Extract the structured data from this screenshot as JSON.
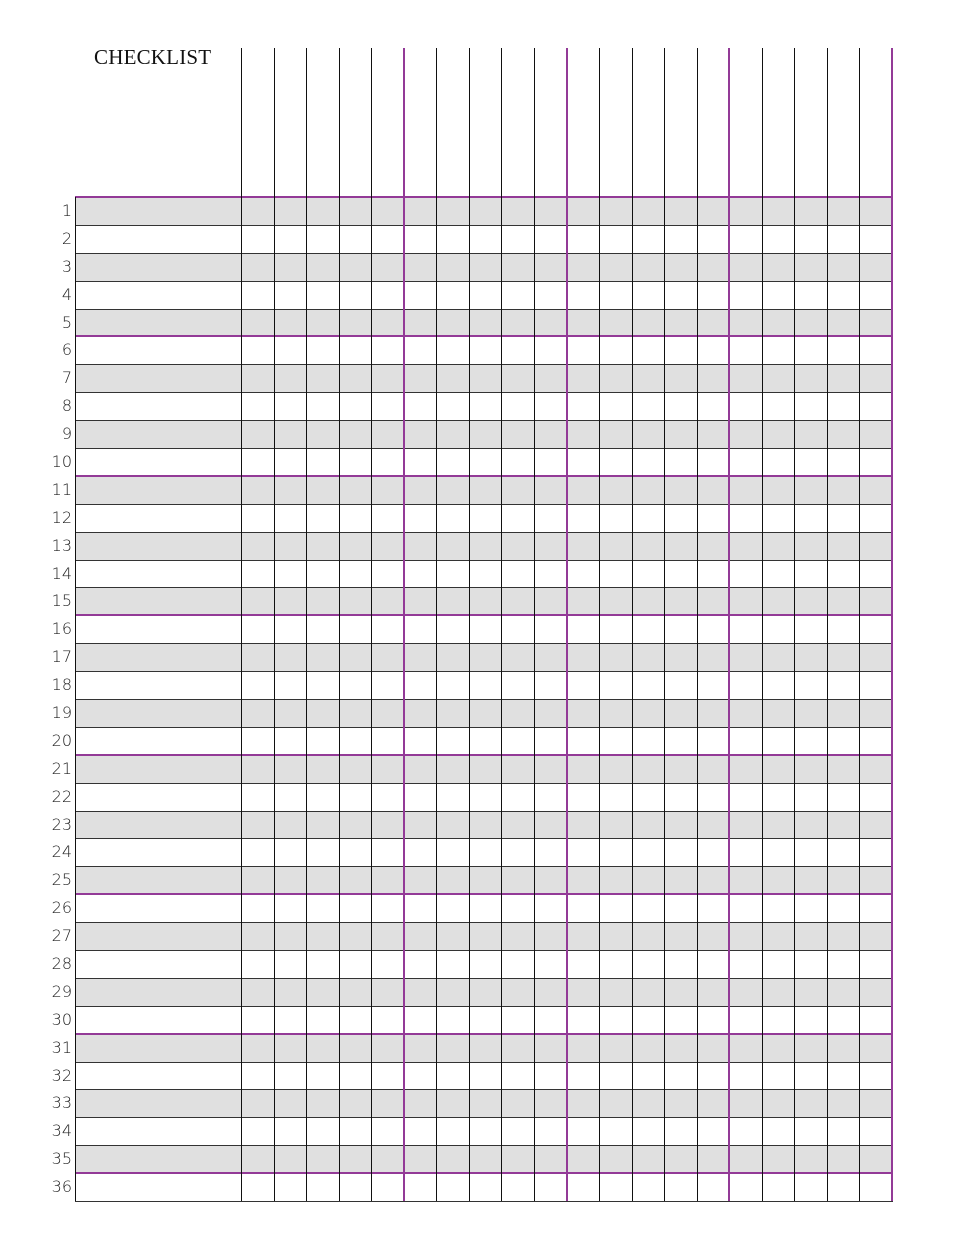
{
  "title": "CHECKLIST",
  "columns": 20,
  "rows": [
    "1",
    "2",
    "3",
    "4",
    "5",
    "6",
    "7",
    "8",
    "9",
    "10",
    "11",
    "12",
    "13",
    "14",
    "15",
    "16",
    "17",
    "18",
    "19",
    "20",
    "21",
    "22",
    "23",
    "24",
    "25",
    "26",
    "27",
    "28",
    "29",
    "30",
    "31",
    "32",
    "33",
    "34",
    "35",
    "36"
  ],
  "colors": {
    "accent": "#933a97",
    "stripe": "#e0e0e0",
    "line": "#222222"
  }
}
